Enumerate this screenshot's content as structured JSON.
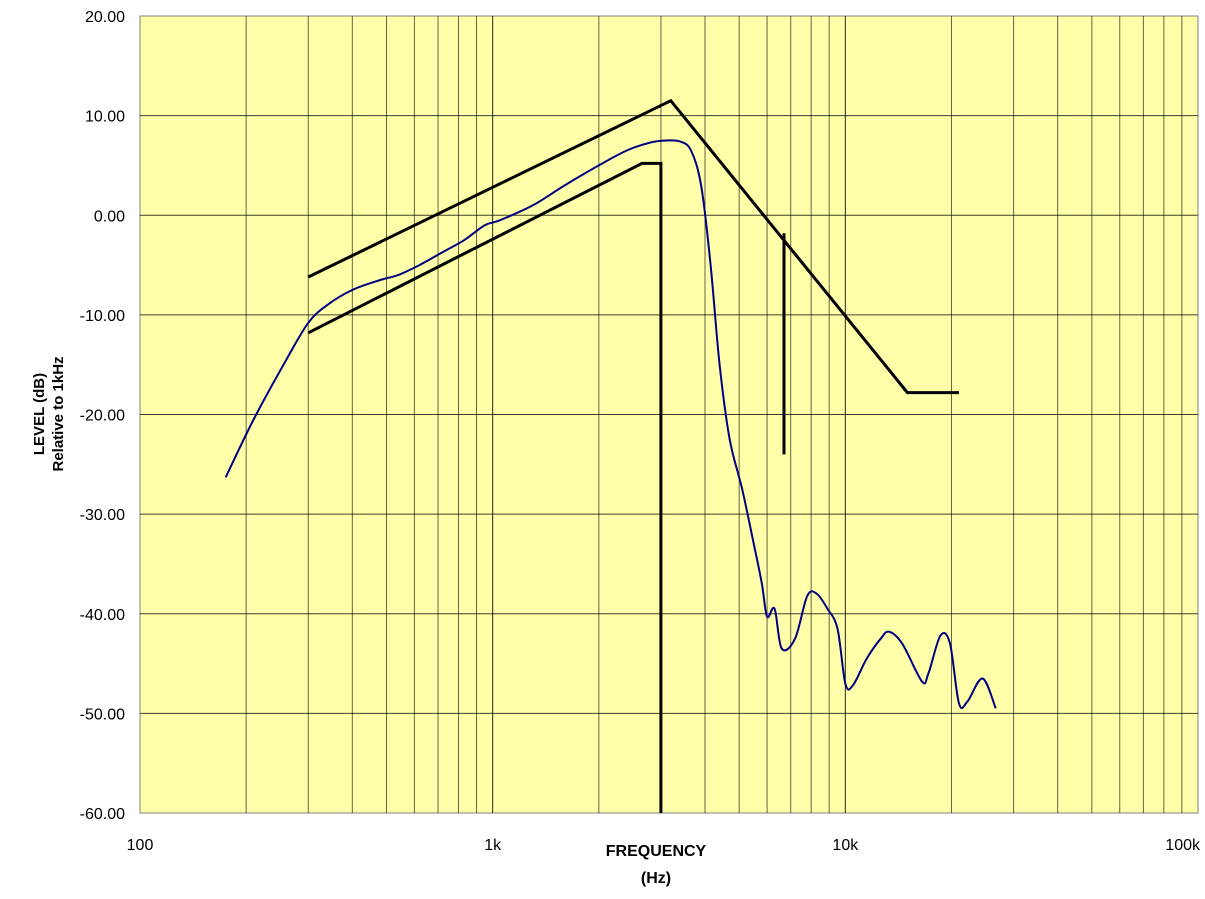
{
  "chart_data": {
    "type": "line",
    "xlabel": "FREQUENCY",
    "xunit": "(Hz)",
    "ylabel": "LEVEL (dB)",
    "ylabel2": "Relative to 1kHz",
    "xscale": "log",
    "xlim": [
      100,
      100000
    ],
    "ylim": [
      -60,
      20
    ],
    "grid": true,
    "plot_background": "#ffffaa",
    "xticks": [
      {
        "value": 100,
        "label": "100"
      },
      {
        "value": 1000,
        "label": "1k"
      },
      {
        "value": 10000,
        "label": "10k"
      },
      {
        "value": 100000,
        "label": "100k"
      }
    ],
    "yticks": [
      {
        "value": 20,
        "label": "20.00"
      },
      {
        "value": 10,
        "label": "10.00"
      },
      {
        "value": 0,
        "label": "0.00"
      },
      {
        "value": -10,
        "label": "-10.00"
      },
      {
        "value": -20,
        "label": "-20.00"
      },
      {
        "value": -30,
        "label": "-30.00"
      },
      {
        "value": -40,
        "label": "-40.00"
      },
      {
        "value": -50,
        "label": "-50.00"
      },
      {
        "value": -60,
        "label": "-60.00"
      }
    ],
    "series": [
      {
        "color": "#000080",
        "style": "smooth",
        "points": [
          [
            175,
            -26.3
          ],
          [
            210,
            -20.5
          ],
          [
            260,
            -14.5
          ],
          [
            300,
            -10.8
          ],
          [
            340,
            -9.0
          ],
          [
            400,
            -7.5
          ],
          [
            480,
            -6.5
          ],
          [
            540,
            -6.0
          ],
          [
            620,
            -5.0
          ],
          [
            730,
            -3.6
          ],
          [
            830,
            -2.5
          ],
          [
            950,
            -1.0
          ],
          [
            1050,
            -0.5
          ],
          [
            1300,
            1.0
          ],
          [
            1600,
            3.0
          ],
          [
            2000,
            5.0
          ],
          [
            2400,
            6.5
          ],
          [
            2800,
            7.3
          ],
          [
            3100,
            7.5
          ],
          [
            3400,
            7.4
          ],
          [
            3650,
            6.5
          ],
          [
            3900,
            3.0
          ],
          [
            4150,
            -5.0
          ],
          [
            4400,
            -15.0
          ],
          [
            4700,
            -22.5
          ],
          [
            5100,
            -27.5
          ],
          [
            5500,
            -33.0
          ],
          [
            5800,
            -37.0
          ],
          [
            6000,
            -40.3
          ],
          [
            6300,
            -39.5
          ],
          [
            6600,
            -43.5
          ],
          [
            7200,
            -42.5
          ],
          [
            7800,
            -38.2
          ],
          [
            8300,
            -38.0
          ],
          [
            8900,
            -39.5
          ],
          [
            9500,
            -41.5
          ],
          [
            10000,
            -47.0
          ],
          [
            10500,
            -47.2
          ],
          [
            11500,
            -44.5
          ],
          [
            12600,
            -42.5
          ],
          [
            13300,
            -41.8
          ],
          [
            14500,
            -43.0
          ],
          [
            16500,
            -46.8
          ],
          [
            17200,
            -46.0
          ],
          [
            18600,
            -42.2
          ],
          [
            19800,
            -43.0
          ],
          [
            21000,
            -49.0
          ],
          [
            22200,
            -48.8
          ],
          [
            24500,
            -46.5
          ],
          [
            26700,
            -49.5
          ]
        ]
      },
      {
        "color": "#000000",
        "style": "linear",
        "points": [
          [
            300,
            -6.2
          ],
          [
            3200,
            11.5
          ],
          [
            15000,
            -17.8
          ],
          [
            21000,
            -17.8
          ]
        ]
      },
      {
        "color": "#000000",
        "style": "linear",
        "points": [
          [
            300,
            -11.8
          ],
          [
            2650,
            5.2
          ],
          [
            3000,
            5.2
          ],
          [
            3000,
            -60
          ]
        ]
      },
      {
        "color": "#000000",
        "style": "linear",
        "points": [
          [
            6700,
            -1.8
          ],
          [
            6700,
            -24.0
          ]
        ]
      }
    ]
  }
}
